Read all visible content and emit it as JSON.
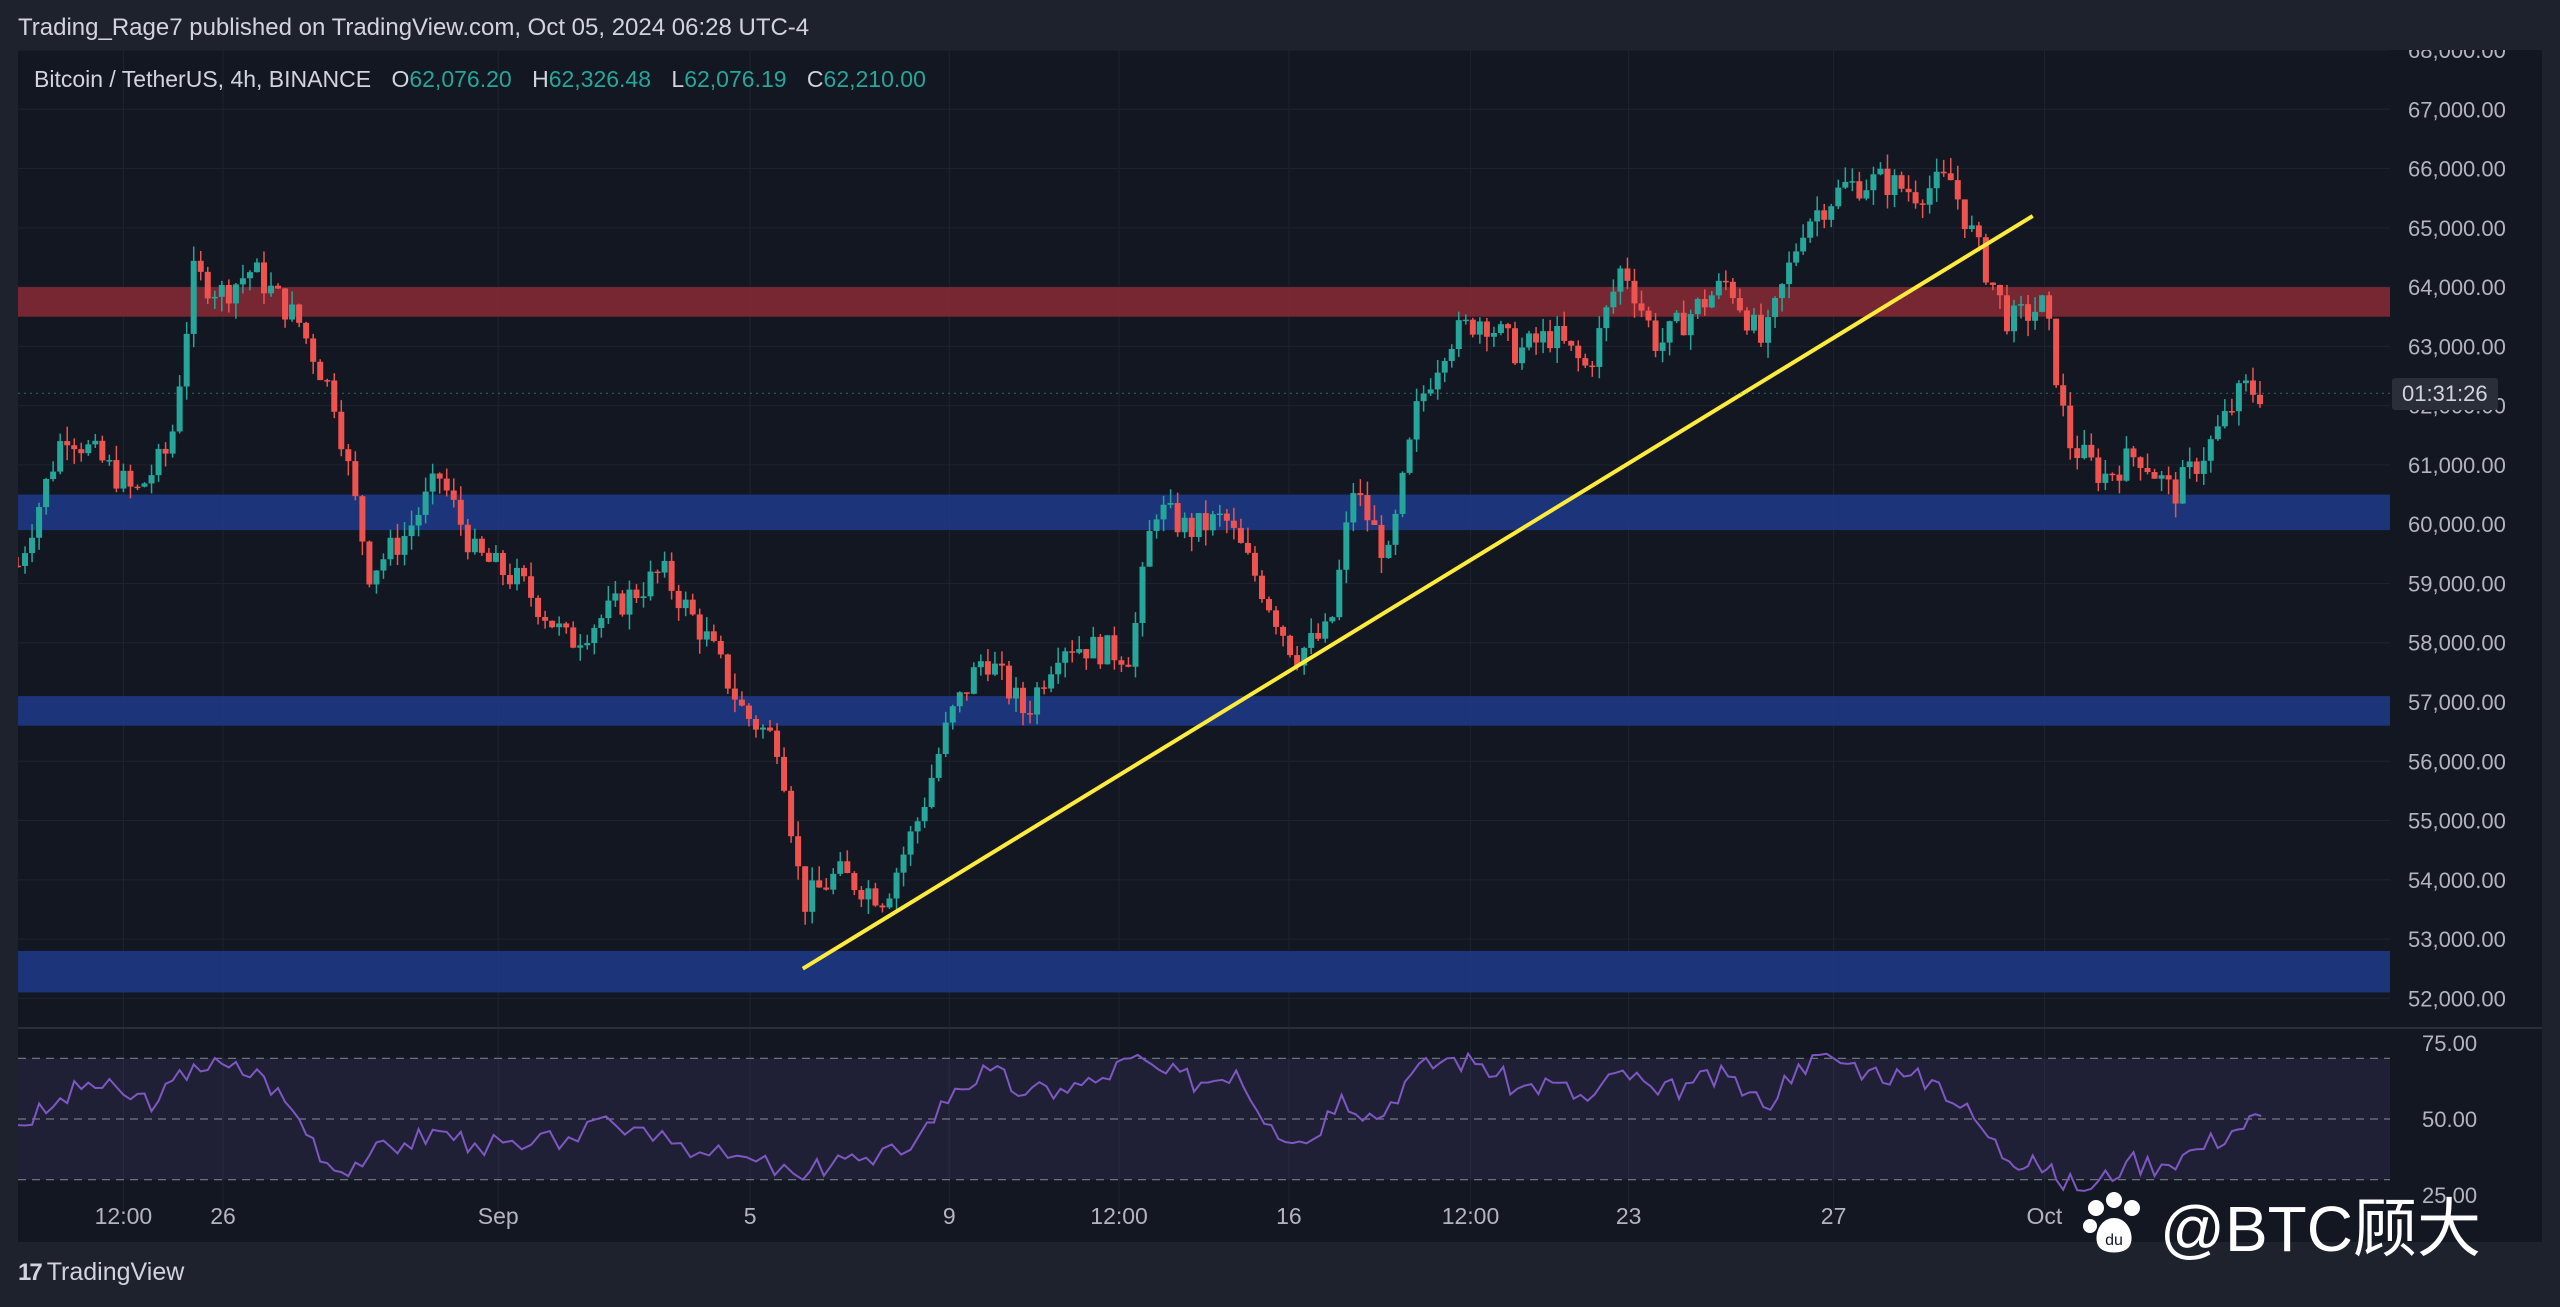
{
  "publisher_line": "Trading_Rage7 published on TradingView.com, Oct 05, 2024 06:28 UTC-4",
  "legend": {
    "symbol": "Bitcoin / TetherUS, 4h, BINANCE",
    "o_label": "O",
    "o": "62,076.20",
    "h_label": "H",
    "h": "62,326.48",
    "l_label": "L",
    "l": "62,076.19",
    "c_label": "C",
    "c": "62,210.00"
  },
  "countdown": "01:31:26",
  "footer": {
    "logo_text": "TradingView"
  },
  "watermark": {
    "text": "@BTC顾大"
  },
  "colors": {
    "background": "#131722",
    "up": "#26a69a",
    "down": "#ef5350",
    "trendline": "#ffeb3b",
    "resistance_zone": "#8a2a34",
    "support_zone": "#1e3a8a",
    "rsi_line": "#7e57c2"
  },
  "chart_data": [
    {
      "type": "candlestick",
      "ylim": [
        51500,
        68000
      ],
      "y_ticks": [
        "52,000.00",
        "53,000.00",
        "54,000.00",
        "55,000.00",
        "56,000.00",
        "57,000.00",
        "58,000.00",
        "59,000.00",
        "60,000.00",
        "61,000.00",
        "62,000.00",
        "63,000.00",
        "64,000.00",
        "65,000.00",
        "66,000.00",
        "67,000.00",
        "68,000.00"
      ],
      "x_ticks": [
        {
          "label": "12:00",
          "x": 0.8
        },
        {
          "label": "26",
          "x": 2.5
        },
        {
          "label": "Sep",
          "x": 7.2
        },
        {
          "label": "5",
          "x": 11.5
        },
        {
          "label": "9",
          "x": 14.9
        },
        {
          "label": "12:00",
          "x": 17.8
        },
        {
          "label": "16",
          "x": 20.7
        },
        {
          "label": "12:00",
          "x": 23.8
        },
        {
          "label": "23",
          "x": 26.5
        },
        {
          "label": "27",
          "x": 30.0
        },
        {
          "label": "Oct",
          "x": 33.6
        }
      ],
      "x_range": [
        -1,
        39.5
      ],
      "zones": [
        {
          "kind": "resistance",
          "from": 63500,
          "to": 64000
        },
        {
          "kind": "support",
          "from": 59900,
          "to": 60500
        },
        {
          "kind": "support",
          "from": 56600,
          "to": 57100
        },
        {
          "kind": "support",
          "from": 52100,
          "to": 52800
        }
      ],
      "trendline": {
        "start": {
          "x": 12.4,
          "y": 52500
        },
        "end": {
          "x": 33.4,
          "y": 65200
        }
      },
      "series_path": [
        [
          -1.0,
          59300
        ],
        [
          -0.2,
          61600
        ],
        [
          0.5,
          61000
        ],
        [
          1.0,
          60500
        ],
        [
          1.6,
          61300
        ],
        [
          2.0,
          64200
        ],
        [
          2.5,
          63900
        ],
        [
          3.0,
          64300
        ],
        [
          3.8,
          63400
        ],
        [
          4.4,
          62100
        ],
        [
          5.0,
          59200
        ],
        [
          5.6,
          59800
        ],
        [
          6.2,
          60800
        ],
        [
          6.8,
          59500
        ],
        [
          7.6,
          59000
        ],
        [
          8.4,
          58000
        ],
        [
          9.2,
          58600
        ],
        [
          10.0,
          59200
        ],
        [
          10.8,
          58000
        ],
        [
          11.4,
          56800
        ],
        [
          12.0,
          56300
        ],
        [
          12.4,
          53600
        ],
        [
          13.0,
          54100
        ],
        [
          13.8,
          53700
        ],
        [
          14.4,
          55100
        ],
        [
          14.9,
          56700
        ],
        [
          15.5,
          57800
        ],
        [
          16.2,
          56800
        ],
        [
          16.8,
          58000
        ],
        [
          17.4,
          57900
        ],
        [
          18.0,
          57800
        ],
        [
          18.4,
          60300
        ],
        [
          19.0,
          59900
        ],
        [
          19.6,
          60100
        ],
        [
          20.2,
          59000
        ],
        [
          20.8,
          57800
        ],
        [
          21.4,
          58200
        ],
        [
          21.8,
          60600
        ],
        [
          22.4,
          59400
        ],
        [
          22.9,
          62000
        ],
        [
          23.4,
          63100
        ],
        [
          24.0,
          63500
        ],
        [
          24.6,
          62900
        ],
        [
          25.2,
          63200
        ],
        [
          25.8,
          62600
        ],
        [
          26.4,
          64400
        ],
        [
          27.0,
          63000
        ],
        [
          27.6,
          63600
        ],
        [
          28.2,
          64100
        ],
        [
          28.8,
          63000
        ],
        [
          29.5,
          65100
        ],
        [
          30.2,
          65700
        ],
        [
          30.8,
          65800
        ],
        [
          31.4,
          65600
        ],
        [
          32.0,
          65800
        ],
        [
          32.6,
          64300
        ],
        [
          33.0,
          63400
        ],
        [
          33.6,
          63700
        ],
        [
          34.0,
          61400
        ],
        [
          34.6,
          60800
        ],
        [
          35.2,
          61200
        ],
        [
          35.8,
          60500
        ],
        [
          36.4,
          61300
        ],
        [
          37.0,
          62300
        ],
        [
          37.3,
          62210
        ]
      ]
    },
    {
      "type": "line",
      "name": "RSI",
      "ylim": [
        20,
        80
      ],
      "y_ticks": [
        "25.00",
        "50.00",
        "75.00"
      ],
      "levels": [
        30,
        50,
        70
      ],
      "x_range": [
        -1,
        39.5
      ],
      "points": [
        [
          -1.0,
          48
        ],
        [
          -0.4,
          54
        ],
        [
          0.2,
          62
        ],
        [
          0.8,
          58
        ],
        [
          1.4,
          56
        ],
        [
          2.0,
          68
        ],
        [
          2.6,
          67
        ],
        [
          3.2,
          64
        ],
        [
          3.8,
          50
        ],
        [
          4.4,
          33
        ],
        [
          5.0,
          38
        ],
        [
          5.6,
          42
        ],
        [
          6.2,
          46
        ],
        [
          6.8,
          42
        ],
        [
          7.6,
          40
        ],
        [
          8.4,
          44
        ],
        [
          9.2,
          48
        ],
        [
          10.0,
          46
        ],
        [
          10.8,
          38
        ],
        [
          11.6,
          36
        ],
        [
          12.4,
          30
        ],
        [
          13.0,
          38
        ],
        [
          13.6,
          35
        ],
        [
          14.4,
          45
        ],
        [
          15.0,
          60
        ],
        [
          15.6,
          66
        ],
        [
          16.2,
          58
        ],
        [
          16.8,
          60
        ],
        [
          17.4,
          62
        ],
        [
          18.0,
          70
        ],
        [
          18.6,
          65
        ],
        [
          19.2,
          62
        ],
        [
          19.8,
          66
        ],
        [
          20.4,
          48
        ],
        [
          21.0,
          42
        ],
        [
          21.6,
          58
        ],
        [
          22.2,
          50
        ],
        [
          22.8,
          65
        ],
        [
          23.4,
          70
        ],
        [
          24.0,
          68
        ],
        [
          24.6,
          60
        ],
        [
          25.2,
          62
        ],
        [
          25.8,
          56
        ],
        [
          26.4,
          66
        ],
        [
          27.0,
          58
        ],
        [
          27.6,
          62
        ],
        [
          28.2,
          64
        ],
        [
          28.8,
          54
        ],
        [
          29.4,
          68
        ],
        [
          30.0,
          70
        ],
        [
          30.6,
          66
        ],
        [
          31.2,
          64
        ],
        [
          31.8,
          62
        ],
        [
          32.4,
          50
        ],
        [
          33.0,
          36
        ],
        [
          33.4,
          38
        ],
        [
          33.8,
          30
        ],
        [
          34.4,
          27
        ],
        [
          35.0,
          36
        ],
        [
          35.6,
          35
        ],
        [
          36.2,
          40
        ],
        [
          36.8,
          46
        ],
        [
          37.3,
          51
        ]
      ]
    }
  ]
}
